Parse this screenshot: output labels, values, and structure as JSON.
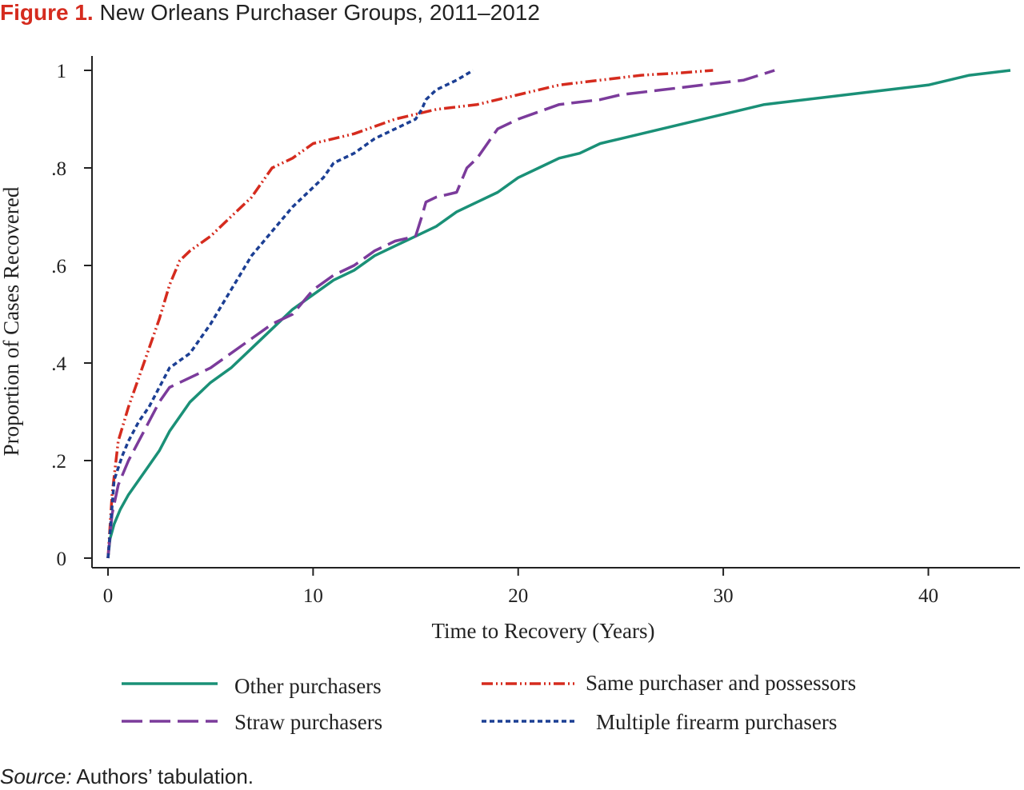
{
  "figure": {
    "label": "Figure 1.",
    "title": "New Orleans Purchaser Groups, 2011–2012"
  },
  "source": {
    "label": "Source:",
    "text": "Authors’ tabulation."
  },
  "chart_data": {
    "type": "line",
    "xlabel": "Time to Recovery (Years)",
    "ylabel": "Proportion of Cases Recovered",
    "xlim": [
      0,
      44
    ],
    "ylim": [
      0,
      1
    ],
    "xticks": [
      {
        "value": 0,
        "label": "0"
      },
      {
        "value": 10,
        "label": "10"
      },
      {
        "value": 20,
        "label": "20"
      },
      {
        "value": 30,
        "label": "30"
      },
      {
        "value": 40,
        "label": "40"
      }
    ],
    "yticks": [
      {
        "value": 0,
        "label": "0"
      },
      {
        "value": 0.2,
        "label": ".2"
      },
      {
        "value": 0.4,
        "label": ".4"
      },
      {
        "value": 0.6,
        "label": ".6"
      },
      {
        "value": 0.8,
        "label": ".8"
      },
      {
        "value": 1,
        "label": "1"
      }
    ],
    "grid": false,
    "legend_position": "bottom",
    "series": [
      {
        "name": "Other purchasers",
        "color": "#1a9077",
        "style": "solid",
        "x": [
          0,
          0.1,
          0.3,
          0.6,
          1.0,
          1.5,
          2.0,
          2.5,
          3.0,
          3.5,
          4.0,
          5.0,
          6.0,
          7.0,
          8.0,
          9.0,
          10.0,
          11.0,
          12.0,
          13.0,
          14.0,
          15.0,
          16.0,
          17.0,
          18.0,
          19.0,
          20.0,
          21.0,
          22.0,
          23.0,
          24.0,
          25.0,
          26.0,
          28.0,
          30.0,
          32.0,
          34.0,
          36.0,
          38.0,
          40.0,
          42.0,
          44.0
        ],
        "y": [
          0,
          0.04,
          0.07,
          0.1,
          0.13,
          0.16,
          0.19,
          0.22,
          0.26,
          0.29,
          0.32,
          0.36,
          0.39,
          0.43,
          0.47,
          0.51,
          0.54,
          0.57,
          0.59,
          0.62,
          0.64,
          0.66,
          0.68,
          0.71,
          0.73,
          0.75,
          0.78,
          0.8,
          0.82,
          0.83,
          0.85,
          0.86,
          0.87,
          0.89,
          0.91,
          0.93,
          0.94,
          0.95,
          0.96,
          0.97,
          0.99,
          1.0
        ]
      },
      {
        "name": "Same purchaser and possessors",
        "color": "#d52b1e",
        "style": "dash-dot-dot",
        "x": [
          0,
          0.2,
          0.5,
          1.0,
          1.5,
          2.0,
          2.5,
          3.0,
          3.5,
          4.0,
          5.0,
          6.0,
          7.0,
          8.0,
          9.0,
          10.0,
          11.0,
          12.0,
          14.0,
          16.0,
          18.0,
          20.0,
          22.0,
          24.0,
          26.0,
          28.0,
          29.5
        ],
        "y": [
          0,
          0.13,
          0.24,
          0.31,
          0.37,
          0.43,
          0.49,
          0.56,
          0.61,
          0.63,
          0.66,
          0.7,
          0.74,
          0.8,
          0.82,
          0.85,
          0.86,
          0.87,
          0.9,
          0.92,
          0.93,
          0.95,
          0.97,
          0.98,
          0.99,
          0.995,
          1.0
        ]
      },
      {
        "name": "Straw purchasers",
        "color": "#7b3b9b",
        "style": "long-dash",
        "x": [
          0,
          0.2,
          0.5,
          1.0,
          1.5,
          2.0,
          2.5,
          3.0,
          4.0,
          5.0,
          6.0,
          7.0,
          8.0,
          9.0,
          10.0,
          11.0,
          12.0,
          13.0,
          14.0,
          15.0,
          15.3,
          15.5,
          16.0,
          17.0,
          17.5,
          18.0,
          18.5,
          19.0,
          20.0,
          22.0,
          24.0,
          25.0,
          27.0,
          29.0,
          31.0,
          32.5
        ],
        "y": [
          0,
          0.09,
          0.15,
          0.2,
          0.24,
          0.28,
          0.32,
          0.35,
          0.37,
          0.39,
          0.42,
          0.45,
          0.48,
          0.5,
          0.55,
          0.58,
          0.6,
          0.63,
          0.65,
          0.66,
          0.7,
          0.73,
          0.74,
          0.75,
          0.8,
          0.82,
          0.85,
          0.88,
          0.9,
          0.93,
          0.94,
          0.95,
          0.96,
          0.97,
          0.98,
          1.0
        ]
      },
      {
        "name": "Multiple firearm purchasers",
        "color": "#1c3f94",
        "style": "short-dash",
        "x": [
          0,
          0.3,
          0.7,
          1.0,
          1.5,
          2.0,
          2.5,
          3.0,
          4.0,
          5.0,
          6.0,
          7.0,
          8.0,
          9.0,
          10.0,
          10.5,
          11.0,
          12.0,
          13.0,
          14.0,
          15.0,
          15.3,
          15.5,
          16.0,
          17.0,
          17.8
        ],
        "y": [
          0,
          0.16,
          0.21,
          0.24,
          0.28,
          0.31,
          0.35,
          0.39,
          0.42,
          0.48,
          0.55,
          0.62,
          0.67,
          0.72,
          0.76,
          0.78,
          0.81,
          0.83,
          0.86,
          0.88,
          0.9,
          0.92,
          0.94,
          0.96,
          0.98,
          1.0
        ]
      }
    ]
  }
}
